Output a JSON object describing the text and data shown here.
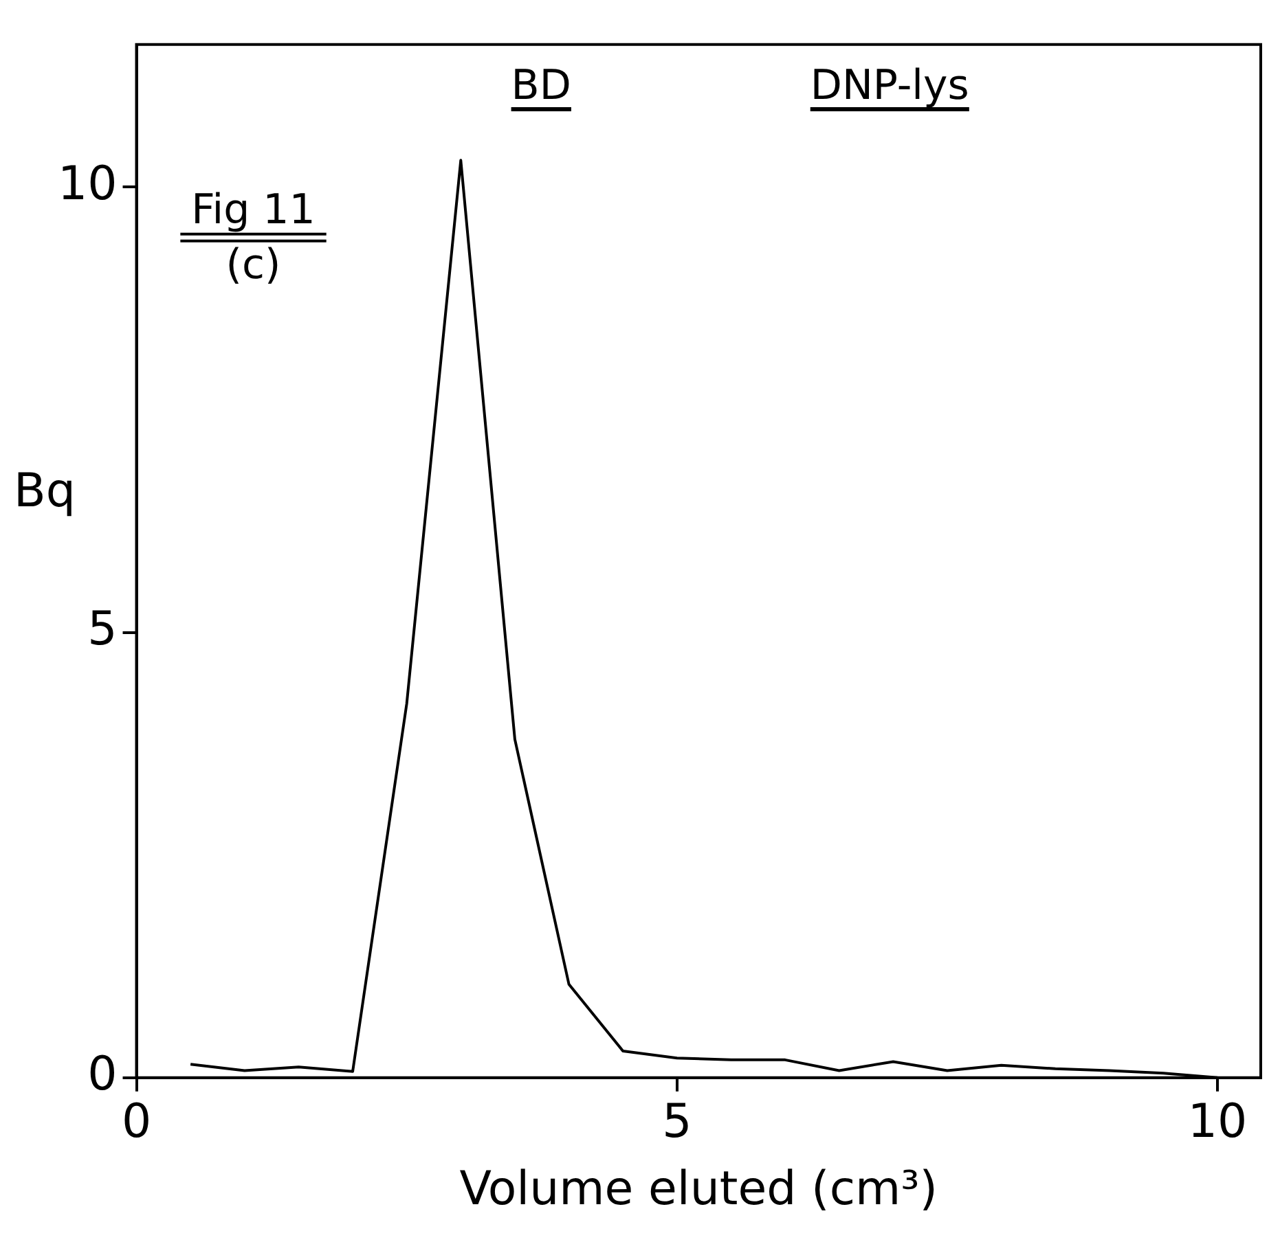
{
  "chart_data": {
    "type": "line",
    "xlabel": "Volume eluted (cm³)",
    "ylabel": "Bq",
    "x": [
      0.5,
      1.0,
      1.5,
      2.0,
      2.5,
      3.0,
      3.5,
      4.0,
      4.5,
      5.0,
      5.5,
      6.0,
      6.5,
      7.0,
      7.5,
      8.0,
      8.5,
      9.0,
      9.5,
      10.0
    ],
    "series": [
      {
        "color": "#000000",
        "values": [
          0.15,
          0.08,
          0.12,
          0.07,
          4.2,
          10.3,
          3.8,
          1.05,
          0.3,
          0.22,
          0.2,
          0.2,
          0.08,
          0.18,
          0.08,
          0.14,
          0.1,
          0.08,
          0.05,
          0.0
        ]
      }
    ],
    "xlim": [
      0,
      10.4
    ],
    "xticks": [
      0,
      5,
      10
    ],
    "ylim": [
      0,
      11.6
    ],
    "yticks": [
      0,
      5,
      10
    ],
    "grid": false,
    "legend": false,
    "marker": "none",
    "line_style": "solid",
    "annotations": [
      "Fig 11",
      "(c)",
      "BD",
      "DNP-lys"
    ]
  }
}
